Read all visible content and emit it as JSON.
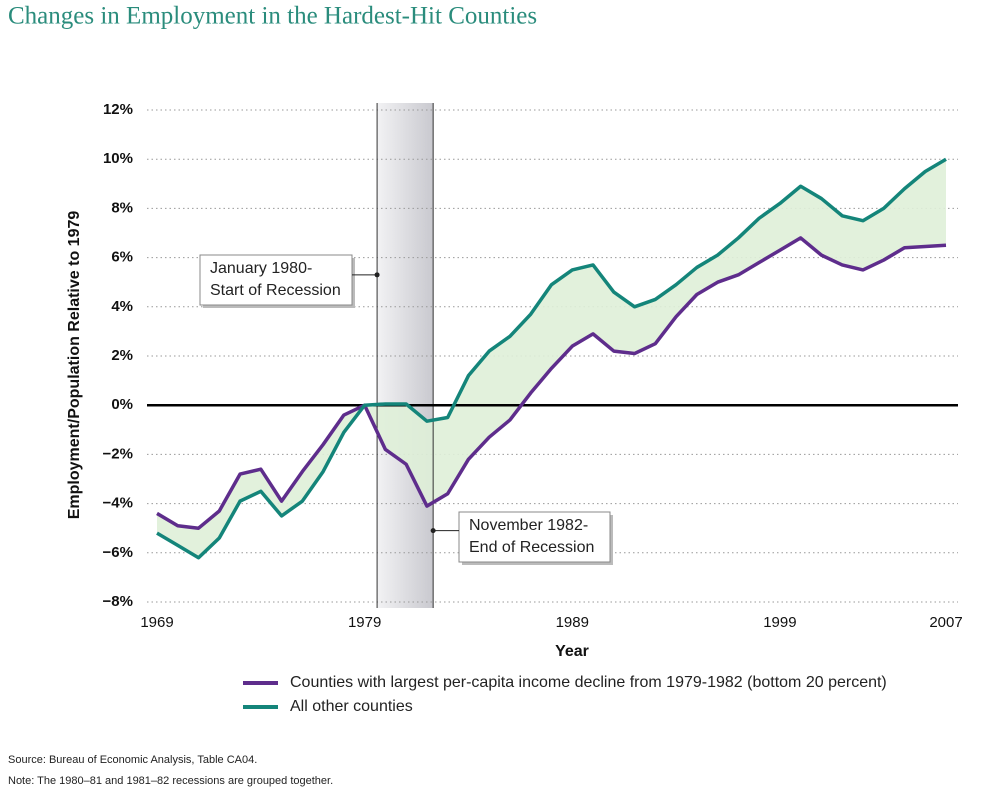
{
  "chart_data": {
    "type": "line",
    "title": "Changes in Employment in the Hardest-Hit Counties",
    "x_label": "Year",
    "y_label": "Employment/Population Relative to 1979",
    "x": [
      1969,
      1970,
      1971,
      1972,
      1973,
      1974,
      1975,
      1976,
      1977,
      1978,
      1979,
      1980,
      1981,
      1982,
      1983,
      1984,
      1985,
      1986,
      1987,
      1988,
      1989,
      1990,
      1991,
      1992,
      1993,
      1994,
      1995,
      1996,
      1997,
      1998,
      1999,
      2000,
      2001,
      2002,
      2003,
      2004,
      2005,
      2006,
      2007
    ],
    "series": [
      {
        "name": "Counties with largest per-capita income decline from 1979-1982 (bottom 20 percent)",
        "color": "#5e2d8c",
        "values": [
          -4.4,
          -4.9,
          -5.0,
          -4.3,
          -2.8,
          -2.6,
          -3.9,
          -2.7,
          -1.6,
          -0.4,
          0,
          -1.8,
          -2.4,
          -4.1,
          -3.6,
          -2.2,
          -1.3,
          -0.6,
          0.5,
          1.5,
          2.4,
          2.9,
          2.2,
          2.1,
          2.5,
          3.6,
          4.5,
          5.0,
          5.3,
          5.8,
          6.3,
          6.8,
          6.1,
          5.7,
          5.5,
          5.9,
          6.4,
          6.45,
          6.5
        ]
      },
      {
        "name": "All other counties",
        "color": "#14857a",
        "values": [
          -5.2,
          -5.7,
          -6.2,
          -5.4,
          -3.9,
          -3.5,
          -4.5,
          -3.9,
          -2.7,
          -1.1,
          0,
          0.05,
          0.05,
          -0.65,
          -0.5,
          1.2,
          2.2,
          2.8,
          3.7,
          4.9,
          5.5,
          5.7,
          4.6,
          4.0,
          4.3,
          4.9,
          5.6,
          6.1,
          6.8,
          7.6,
          8.2,
          8.9,
          8.4,
          7.7,
          7.5,
          8.0,
          8.8,
          9.5,
          10.0
        ]
      }
    ],
    "xlim": [
      1969,
      2007
    ],
    "xticks": [
      1969,
      1979,
      1989,
      1999,
      2007
    ],
    "ylim": [
      -8,
      12
    ],
    "yticks": [
      {
        "value": -8,
        "label": "−8%"
      },
      {
        "value": -6,
        "label": "−6%"
      },
      {
        "value": -4,
        "label": "−4%"
      },
      {
        "value": -2,
        "label": "−2%"
      },
      {
        "value": 0,
        "label": "0%"
      },
      {
        "value": 2,
        "label": "2%"
      },
      {
        "value": 4,
        "label": "4%"
      },
      {
        "value": 6,
        "label": "6%"
      },
      {
        "value": 8,
        "label": "8%"
      },
      {
        "value": 10,
        "label": "10%"
      },
      {
        "value": 12,
        "label": "12%"
      }
    ],
    "grid": true,
    "fill_between": true,
    "fill_color": "#dff0d8",
    "shaded_range": [
      1979.6,
      1982.3
    ],
    "annotations": [
      {
        "lines": [
          "January 1980-",
          "Start of Recession"
        ],
        "x": 1979.6,
        "y": 5.3
      },
      {
        "lines": [
          "November 1982-",
          "End of Recession"
        ],
        "x": 1982.3,
        "y": -5.1
      }
    ],
    "source": "Source: Bureau of Economic Analysis, Table CA04.",
    "note": "Note: The 1980–81 and 1981–82 recessions are grouped together."
  }
}
